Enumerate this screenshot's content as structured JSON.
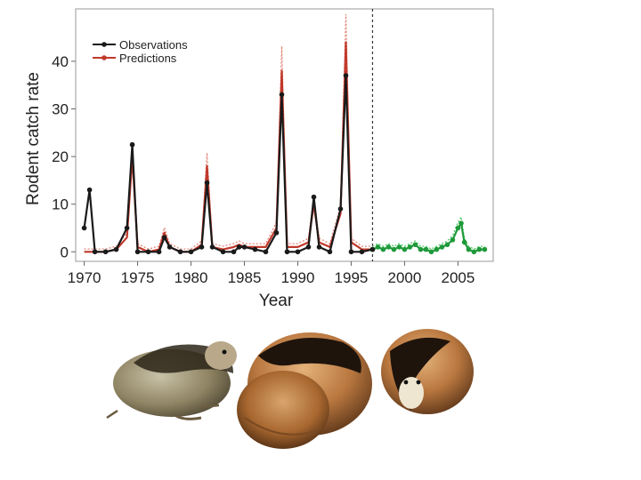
{
  "chart_data": {
    "type": "line",
    "xlabel": "Year",
    "ylabel": "Rodent catch rate",
    "xlim": [
      1969.2,
      2008.3
    ],
    "ylim": [
      -2,
      51
    ],
    "x_ticks": [
      1970,
      1975,
      1980,
      1985,
      1990,
      1995,
      2000,
      2005
    ],
    "y_ticks": [
      0,
      10,
      20,
      30,
      40
    ],
    "grid": false,
    "legend_position": "top-left",
    "vertical_marker_x": 1997,
    "colors": {
      "observations": "#1a1a1a",
      "predictions": "#c0392b",
      "predictions_band": "#e07a6a",
      "forecast": "#1f9a3a",
      "forecast_band": "#3ec45a",
      "marker_line": "#333333"
    },
    "series": [
      {
        "name": "Observations",
        "x": [
          1970,
          1970.5,
          1971,
          1972,
          1973,
          1974,
          1974.5,
          1975,
          1976,
          1977,
          1977.5,
          1978,
          1979,
          1980,
          1981,
          1981.5,
          1982,
          1983,
          1984,
          1984.5,
          1985,
          1986,
          1987,
          1988,
          1988.5,
          1989,
          1990,
          1991,
          1991.5,
          1992,
          1993,
          1994,
          1994.5,
          1995,
          1996,
          1997
        ],
        "values": [
          5,
          13,
          0,
          0,
          0.5,
          5,
          22.5,
          0,
          0,
          0,
          3,
          1,
          0,
          0,
          1,
          14.5,
          1,
          0,
          0,
          1,
          1,
          0.5,
          0,
          4,
          33,
          0,
          0,
          1,
          11.5,
          1,
          0,
          9,
          37,
          0,
          0,
          0.5
        ]
      },
      {
        "name": "Predictions",
        "x": [
          1970,
          1970.5,
          1971,
          1972,
          1973,
          1974,
          1974.5,
          1975,
          1976,
          1977,
          1977.5,
          1978,
          1979,
          1980,
          1981,
          1981.5,
          1982,
          1983,
          1984,
          1984.5,
          1985,
          1986,
          1987,
          1988,
          1988.5,
          1989,
          1990,
          1991,
          1991.5,
          1992,
          1993,
          1994,
          1994.5,
          1995,
          1996,
          1997
        ],
        "values": [
          0,
          0,
          0,
          0,
          0.5,
          3,
          20,
          1,
          0,
          0.5,
          4,
          1,
          0,
          0,
          1.5,
          18,
          1,
          0.5,
          1,
          1.5,
          1,
          1,
          1,
          5,
          38,
          1,
          1,
          2,
          10,
          2,
          1,
          8,
          44,
          2,
          0.5,
          0.5
        ]
      },
      {
        "x": [
          1997,
          1997.5,
          1998,
          1998.5,
          1999,
          1999.5,
          2000,
          2000.5,
          2001,
          2001.5,
          2002,
          2002.5,
          2003,
          2003.5,
          2004,
          2004.5,
          2005,
          2005.3,
          2005.6,
          2006,
          2006.5,
          2007,
          2007.5
        ],
        "values": [
          0.5,
          1,
          0.5,
          1,
          0.5,
          1,
          0.5,
          1,
          1.5,
          0.5,
          0.5,
          0,
          0.5,
          1,
          1.5,
          2.5,
          5,
          6,
          2,
          0.5,
          0,
          0.5,
          0.5
        ]
      }
    ]
  },
  "legend": {
    "observations_label": "Observations",
    "predictions_label": "Predictions"
  },
  "illustration": {
    "subject": "three lemmings (rodents) drawn in colored pencil"
  }
}
